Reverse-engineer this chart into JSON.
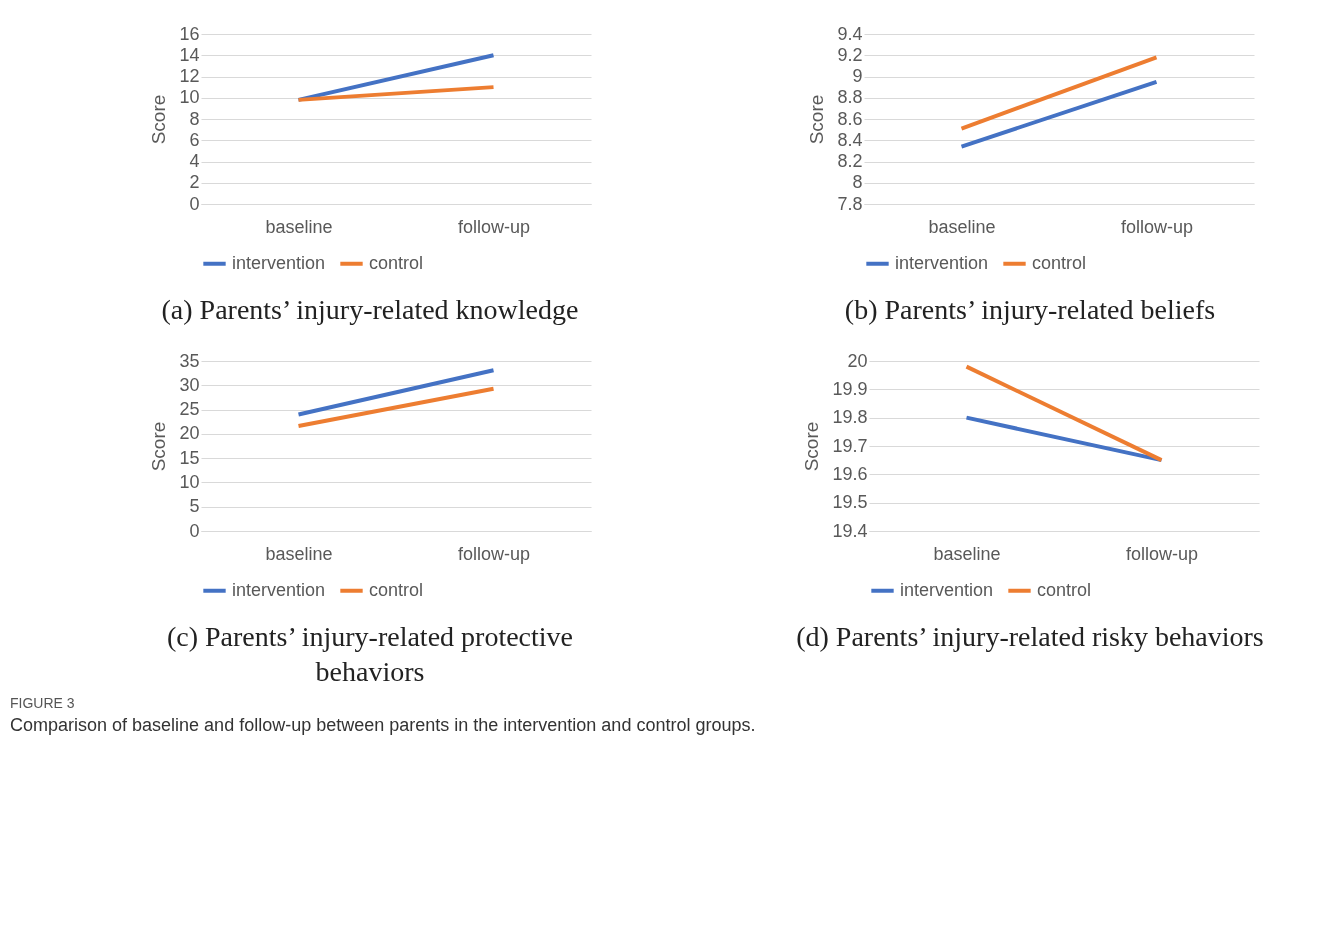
{
  "chart_data": [
    {
      "type": "line",
      "title": "(a) Parents’ injury-related knowledge",
      "ylabel": "Score",
      "categories": [
        "baseline",
        "follow-up"
      ],
      "series": [
        {
          "name": "intervention",
          "color": "#4472c4",
          "values": [
            9.8,
            14.0
          ]
        },
        {
          "name": "control",
          "color": "#ed7d31",
          "values": [
            9.8,
            11.0
          ]
        }
      ],
      "ylim": [
        0,
        16
      ],
      "yticks": [
        0,
        2,
        4,
        6,
        8,
        10,
        12,
        14,
        16
      ],
      "grid": "y",
      "legend": "bottom",
      "marker": "none",
      "line_style": "solid"
    },
    {
      "type": "line",
      "title": "(b) Parents’ injury-related beliefs",
      "ylabel": "Score",
      "categories": [
        "baseline",
        "follow-up"
      ],
      "series": [
        {
          "name": "intervention",
          "color": "#4472c4",
          "values": [
            8.34,
            8.95
          ]
        },
        {
          "name": "control",
          "color": "#ed7d31",
          "values": [
            8.51,
            9.18
          ]
        }
      ],
      "ylim": [
        7.8,
        9.4
      ],
      "yticks": [
        7.8,
        8,
        8.2,
        8.4,
        8.6,
        8.8,
        9,
        9.2,
        9.4
      ],
      "grid": "y",
      "legend": "bottom",
      "marker": "none",
      "line_style": "solid"
    },
    {
      "type": "line",
      "title": "(c) Parents’ injury-related protective behaviors",
      "ylabel": "Score",
      "categories": [
        "baseline",
        "follow-up"
      ],
      "series": [
        {
          "name": "intervention",
          "color": "#4472c4",
          "values": [
            24.0,
            33.1
          ]
        },
        {
          "name": "control",
          "color": "#ed7d31",
          "values": [
            21.6,
            29.3
          ]
        }
      ],
      "ylim": [
        0,
        35
      ],
      "yticks": [
        0,
        5,
        10,
        15,
        20,
        25,
        30,
        35
      ],
      "grid": "y",
      "legend": "bottom",
      "marker": "none",
      "line_style": "solid"
    },
    {
      "type": "line",
      "title": "(d) Parents’ injury-related risky behaviors",
      "ylabel": "Score",
      "categories": [
        "baseline",
        "follow-up"
      ],
      "series": [
        {
          "name": "intervention",
          "color": "#4472c4",
          "values": [
            19.8,
            19.65
          ]
        },
        {
          "name": "control",
          "color": "#ed7d31",
          "values": [
            19.98,
            19.65
          ]
        }
      ],
      "ylim": [
        19.4,
        20
      ],
      "yticks": [
        19.4,
        19.5,
        19.6,
        19.7,
        19.8,
        19.9,
        20
      ],
      "grid": "y",
      "legend": "bottom",
      "marker": "none",
      "line_style": "solid",
      "annotations": [
        "FIGURE 3",
        "Comparison of baseline and follow-up between parents in the intervention and control groups."
      ]
    }
  ]
}
